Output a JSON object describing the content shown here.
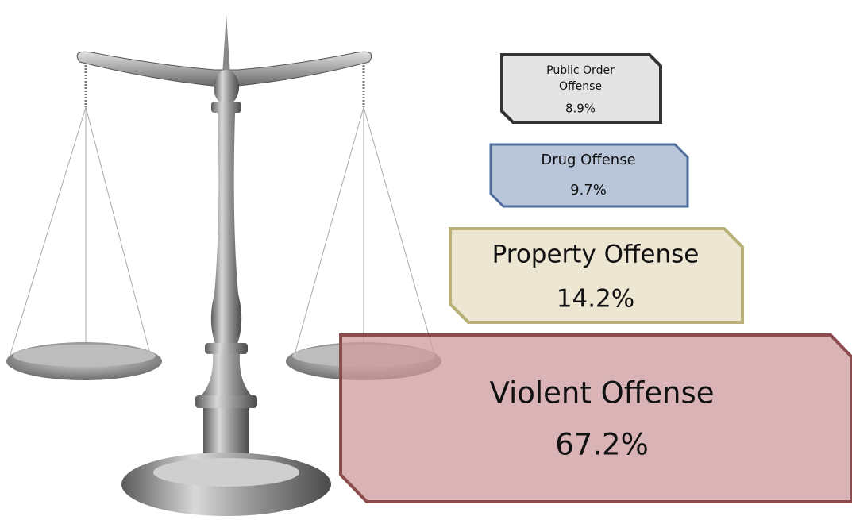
{
  "nodes": [
    {
      "label_lines": [
        "Public Order",
        "Offense"
      ],
      "value": "8.9%"
    },
    {
      "label_lines": [
        "Drug Offense"
      ],
      "value": "9.7%"
    },
    {
      "label_lines": [
        "Property Offense"
      ],
      "value": "14.2%"
    },
    {
      "label_lines": [
        "Violent Offense"
      ],
      "value": "67.2%"
    }
  ]
}
